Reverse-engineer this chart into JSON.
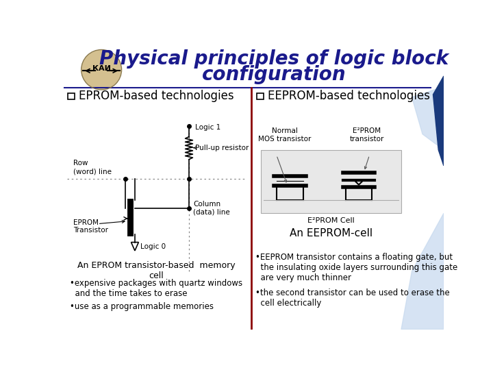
{
  "title_line1": "Physical principles of logic block",
  "title_line2": "configuration",
  "title_color": "#1a1a8c",
  "title_fontsize": 20,
  "bg_color": "#ffffff",
  "divider_color": "#8b0000",
  "left_heading": "EPROM-based technologies",
  "right_heading": "EEPROM-based technologies",
  "heading_fontsize": 12,
  "left_caption": "An EPROM transistor-based  memory\ncell",
  "left_bullet1": "•expensive packages with quartz windows\n  and the time takes to erase",
  "left_bullet2": "•use as a programmable memories",
  "right_caption": "An EEPROM-cell",
  "right_bullet1": "•EEPROM transistor contains a floating gate, but\n  the insulating oxide layers surrounding this gate\n  are very much thinner",
  "right_bullet2": "•the second transistor can be used to erase the\n  cell electrically",
  "accent_color": "#c5d8ee",
  "dark_blue": "#1a1a8c"
}
